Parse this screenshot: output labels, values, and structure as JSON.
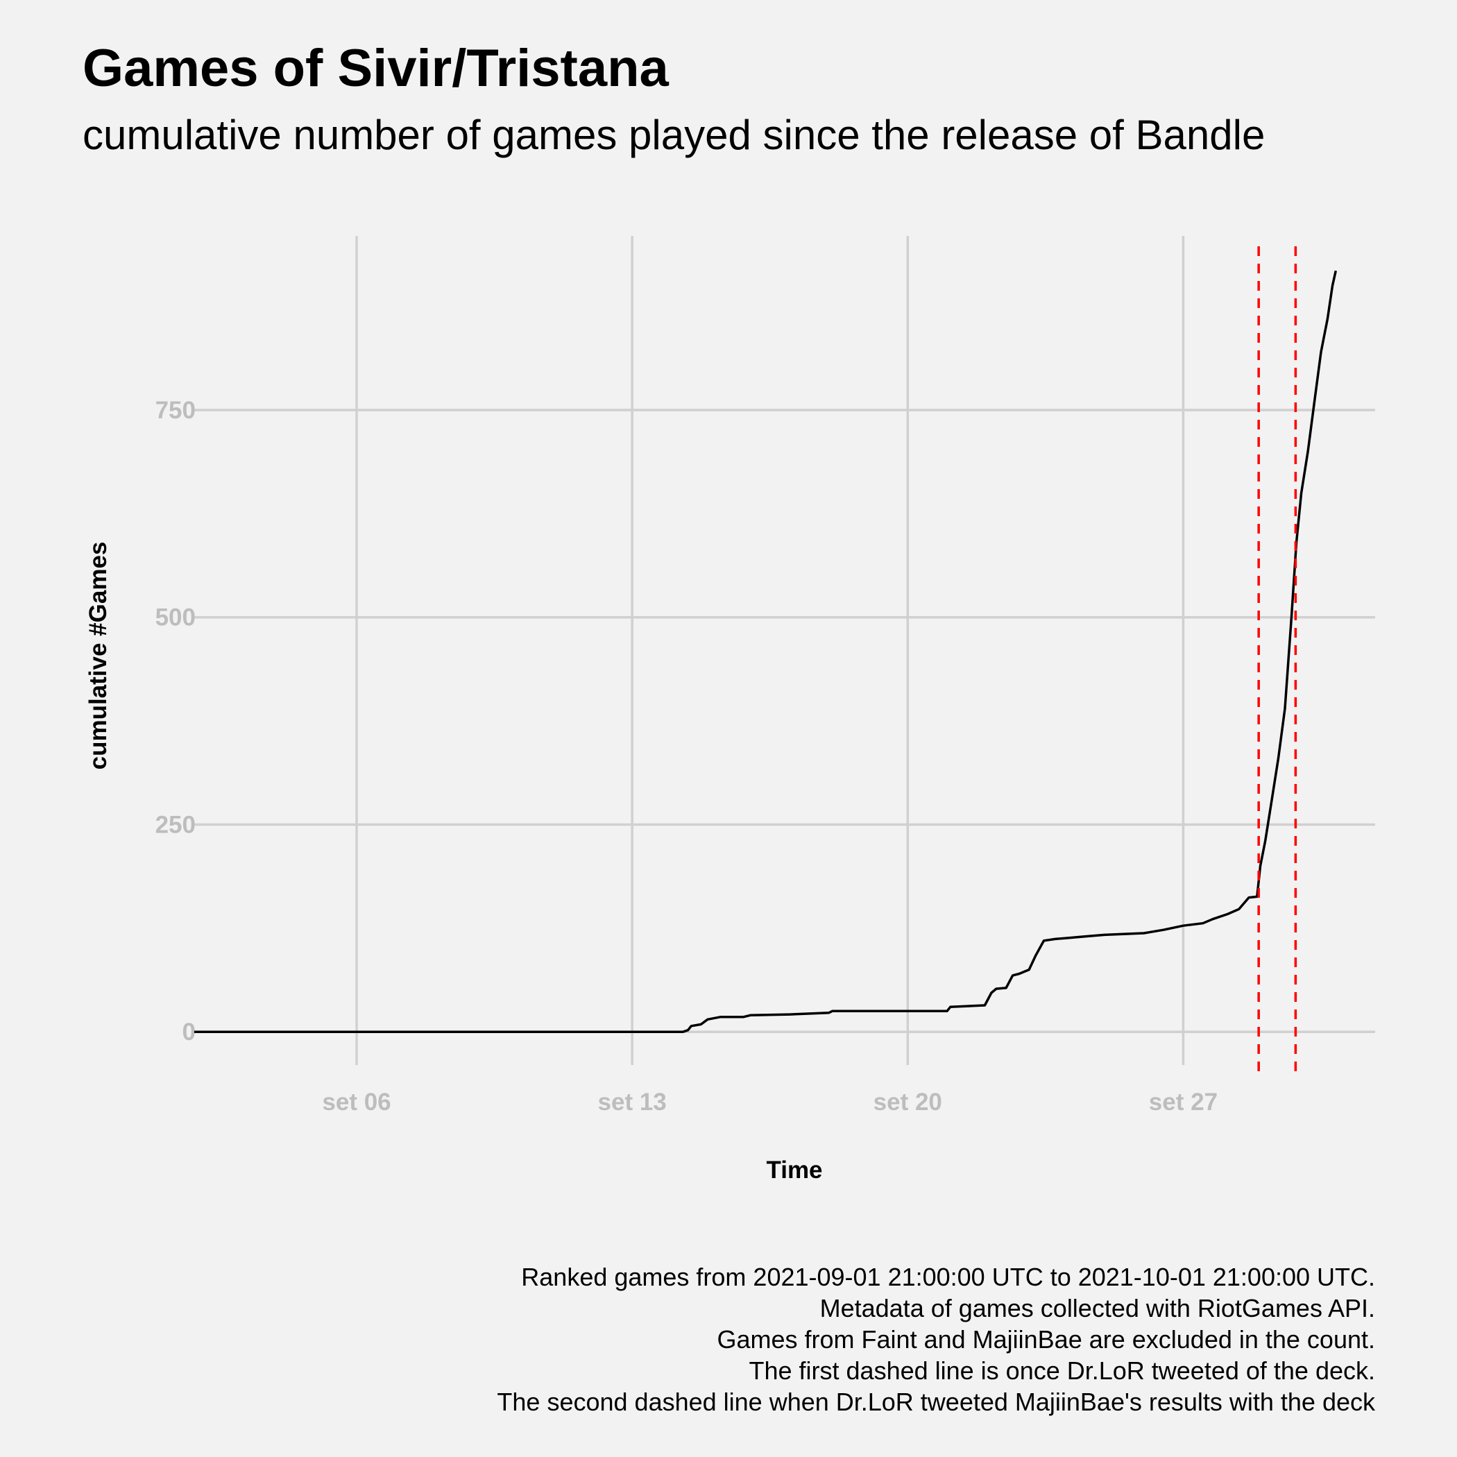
{
  "title": "Games of Sivir/Tristana",
  "subtitle": "cumulative number of games played since the release of Bandle",
  "caption": [
    "Ranked games from 2021-09-01 21:00:00 UTC to 2021-10-01 21:00:00 UTC.",
    "Metadata of games collected with RiotGames API.",
    "Games from Faint and MajiinBae are excluded in the count.",
    "The first dashed line is once Dr.LoR tweeted of the deck.",
    "The second dashed line when Dr.LoR tweeted MajiinBae's results with the deck"
  ],
  "colors": {
    "background": "#f2f2f2",
    "grid": "#d0d0d0",
    "line": "#000000",
    "vline": "#ff0000"
  },
  "chart_data": {
    "type": "line",
    "xlabel": "Time",
    "ylabel": "cumulative #Games",
    "x_axis": "date",
    "xlim": [
      "2021-09-01 21:00",
      "2021-10-01 21:00"
    ],
    "ylim": [
      -40,
      960
    ],
    "x_ticks": [
      {
        "date": "2021-09-06",
        "label": "set 06"
      },
      {
        "date": "2021-09-13",
        "label": "set 13"
      },
      {
        "date": "2021-09-20",
        "label": "set 20"
      },
      {
        "date": "2021-09-27",
        "label": "set 27"
      }
    ],
    "y_ticks": [
      0,
      250,
      500,
      750
    ],
    "grid": true,
    "legend": "none",
    "vlines": [
      {
        "x": "2021-09-28 22:00",
        "style": "dashed",
        "color": "#ff0000"
      },
      {
        "x": "2021-09-29 20:30",
        "style": "dashed",
        "color": "#ff0000"
      }
    ],
    "series": [
      {
        "color": "#000000",
        "points": [
          [
            "2021-09-01 21:00",
            0
          ],
          [
            "2021-09-14 07:00",
            0
          ],
          [
            "2021-09-14 10:00",
            2
          ],
          [
            "2021-09-14 12:00",
            7
          ],
          [
            "2021-09-14 18:00",
            9
          ],
          [
            "2021-09-14 22:00",
            15
          ],
          [
            "2021-09-15 06:00",
            18
          ],
          [
            "2021-09-15 20:00",
            18
          ],
          [
            "2021-09-16 00:00",
            20
          ],
          [
            "2021-09-17 00:00",
            21
          ],
          [
            "2021-09-18 00:00",
            23
          ],
          [
            "2021-09-18 02:00",
            25
          ],
          [
            "2021-09-21 00:00",
            25
          ],
          [
            "2021-09-21 02:00",
            30
          ],
          [
            "2021-09-21 23:00",
            32
          ],
          [
            "2021-09-22 03:00",
            47
          ],
          [
            "2021-09-22 06:00",
            52
          ],
          [
            "2021-09-22 12:00",
            53
          ],
          [
            "2021-09-22 16:00",
            68
          ],
          [
            "2021-09-22 20:00",
            70
          ],
          [
            "2021-09-23 02:00",
            75
          ],
          [
            "2021-09-23 06:00",
            92
          ],
          [
            "2021-09-23 11:00",
            110
          ],
          [
            "2021-09-23 18:00",
            112
          ],
          [
            "2021-09-24 00:00",
            113
          ],
          [
            "2021-09-24 12:00",
            115
          ],
          [
            "2021-09-25 00:00",
            117
          ],
          [
            "2021-09-26 00:00",
            119
          ],
          [
            "2021-09-26 12:00",
            123
          ],
          [
            "2021-09-27 00:00",
            128
          ],
          [
            "2021-09-27 12:00",
            131
          ],
          [
            "2021-09-27 18:00",
            136
          ],
          [
            "2021-09-28 03:00",
            142
          ],
          [
            "2021-09-28 10:00",
            148
          ],
          [
            "2021-09-28 16:00",
            162
          ],
          [
            "2021-09-28 21:00",
            163
          ],
          [
            "2021-09-28 23:00",
            200
          ],
          [
            "2021-09-29 02:00",
            230
          ],
          [
            "2021-09-29 06:00",
            280
          ],
          [
            "2021-09-29 10:00",
            330
          ],
          [
            "2021-09-29 14:00",
            390
          ],
          [
            "2021-09-29 18:00",
            500
          ],
          [
            "2021-09-29 21:00",
            590
          ],
          [
            "2021-09-30 00:00",
            650
          ],
          [
            "2021-09-30 04:00",
            700
          ],
          [
            "2021-09-30 08:00",
            760
          ],
          [
            "2021-09-30 12:00",
            820
          ],
          [
            "2021-09-30 16:00",
            860
          ],
          [
            "2021-09-30 19:00",
            900
          ],
          [
            "2021-09-30 21:00",
            918
          ]
        ]
      }
    ]
  }
}
